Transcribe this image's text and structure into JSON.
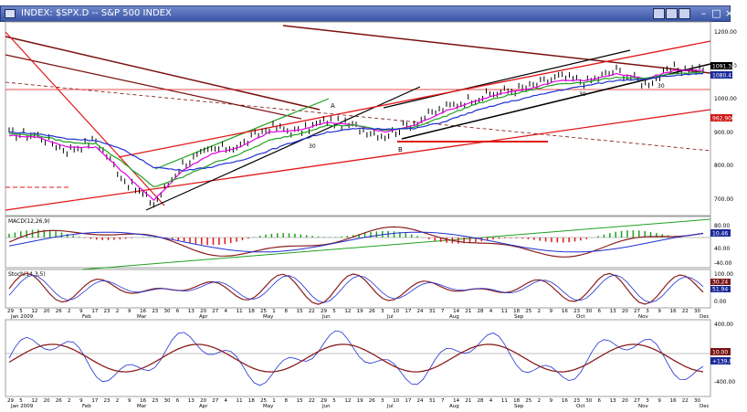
{
  "window": {
    "title": "INDEX: $SPX.D -- S&P 500 INDEX"
  },
  "panels": {
    "price": {
      "y_labels": [
        "1200.00",
        "1100.00",
        "1000.00",
        "900.00",
        "800.00",
        "700.00"
      ],
      "value_tags": [
        {
          "text": "1091.38",
          "bg": "#000000",
          "fg": "#ffffff"
        },
        {
          "text": "1080.47",
          "bg": "#1a2a9a",
          "fg": "#ffffff"
        },
        {
          "text": "962.900",
          "bg": "#d01a1a",
          "fg": "#ffffff"
        }
      ]
    },
    "macd": {
      "label": "MACD(12,26,9)",
      "y_labels": [
        "80.00",
        "40.00",
        "-40.00"
      ],
      "value_tags": [
        {
          "text": "10.46",
          "bg": "#1a2a9a",
          "fg": "#ffffff"
        }
      ]
    },
    "stoch": {
      "label": "Stoch(14,3,5)",
      "y_labels": [
        "100.00",
        "0.00"
      ],
      "value_tags": [
        {
          "text": "30.24",
          "bg": "#7a1414",
          "fg": "#ffffff"
        },
        {
          "text": "51.94",
          "bg": "#1a2a9a",
          "fg": "#ffffff"
        }
      ]
    },
    "osc": {
      "y_labels": [
        "400.00",
        "-400.00"
      ],
      "value_tags": [
        {
          "text": "10.00",
          "bg": "#7a1414",
          "fg": "#ffffff"
        },
        {
          "text": "+139.82",
          "bg": "#1a2a9a",
          "fg": "#ffffff"
        }
      ]
    }
  },
  "annotations": {
    "a_label": "A",
    "b_label": "B",
    "c30_a": "30",
    "c30_b": "30",
    "c30_c": "30"
  },
  "x_axis": {
    "day_ticks": [
      "29",
      "5",
      "12",
      "20",
      "26",
      "2",
      "9",
      "17",
      "23",
      "2",
      "9",
      "16",
      "23",
      "30",
      "6",
      "13",
      "20",
      "27",
      "4",
      "11",
      "18",
      "25",
      "1",
      "8",
      "15",
      "22",
      "29",
      "5",
      "12",
      "19",
      "26",
      "3",
      "10",
      "17",
      "24",
      "31",
      "7",
      "14",
      "21",
      "28",
      "4",
      "11",
      "18",
      "25",
      "2",
      "9",
      "16",
      "23",
      "30",
      "6",
      "13",
      "20",
      "27",
      "3",
      "9",
      "16",
      "22",
      "30"
    ],
    "months": [
      "Jan 2009",
      "Feb",
      "Mar",
      "Apr",
      "May",
      "Jun",
      "Jul",
      "Aug",
      "Sep",
      "Oct",
      "Nov",
      "Dec"
    ]
  },
  "colors": {
    "price": "#000000",
    "ma_short": "#e000e0",
    "ma_mid": "#20a020",
    "ma_long": "#2030d0",
    "channel_red": "#e01818",
    "trend_dark": "#7a1010",
    "macd_line": "#8a1e1e",
    "signal": "#2030d0"
  },
  "chart_data": {
    "type": "line",
    "title": "INDEX: $SPX.D -- S&P 500 INDEX",
    "x": [
      "2008-12-29",
      "2009-01-12",
      "2009-01-26",
      "2009-02-09",
      "2009-02-23",
      "2009-03-09",
      "2009-03-23",
      "2009-04-06",
      "2009-04-20",
      "2009-05-04",
      "2009-05-18",
      "2009-06-01",
      "2009-06-15",
      "2009-06-29",
      "2009-07-13",
      "2009-07-27",
      "2009-08-10",
      "2009-08-24",
      "2009-09-08",
      "2009-09-21",
      "2009-10-05",
      "2009-10-19",
      "2009-11-02",
      "2009-11-16",
      "2009-11-23"
    ],
    "series": [
      {
        "values": [
          900,
          895,
          850,
          880,
          760,
          690,
          810,
          850,
          865,
          920,
          905,
          940,
          920,
          895,
          935,
          975,
          1005,
          1025,
          1040,
          1070,
          1055,
          1090,
          1050,
          1095,
          1091
        ]
      },
      {
        "values": [
          895,
          890,
          860,
          860,
          780,
          700,
          790,
          840,
          860,
          905,
          910,
          935,
          925,
          905,
          925,
          965,
          995,
          1020,
          1035,
          1060,
          1060,
          1080,
          1065,
          1090,
          1091
        ]
      },
      {
        "values": [
          900,
          895,
          875,
          870,
          810,
          740,
          770,
          810,
          840,
          880,
          900,
          925,
          925,
          910,
          920,
          950,
          985,
          1010,
          1030,
          1050,
          1055,
          1070,
          1065,
          1080,
          1085
        ]
      },
      {
        "values": [
          905,
          900,
          885,
          880,
          850,
          800,
          790,
          800,
          820,
          850,
          880,
          905,
          915,
          915,
          915,
          935,
          965,
          990,
          1010,
          1030,
          1045,
          1060,
          1065,
          1075,
          1080
        ]
      }
    ],
    "ylim": [
      660,
      1230
    ]
  }
}
